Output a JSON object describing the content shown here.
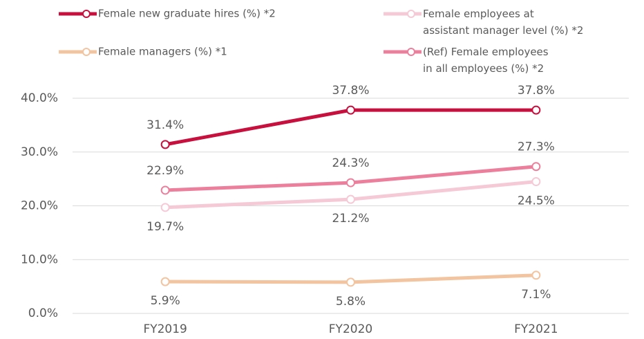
{
  "chart_data": {
    "type": "line",
    "categories": [
      "FY2019",
      "FY2020",
      "FY2021"
    ],
    "series": [
      {
        "name": "Female new graduate hires (%) *2",
        "color": "#c8103e",
        "values": [
          31.4,
          37.8,
          37.8
        ],
        "value_labels": [
          "31.4%",
          "37.8%",
          "37.8%"
        ]
      },
      {
        "name": "Female employees at assistant manager level (%) *2",
        "color": "#f5c9d6",
        "values": [
          19.7,
          21.2,
          24.5
        ],
        "value_labels": [
          "19.7%",
          "21.2%",
          "24.5%"
        ]
      },
      {
        "name": "Female managers (%) *1",
        "color": "#f2c4a0",
        "values": [
          5.9,
          5.8,
          7.1
        ],
        "value_labels": [
          "5.9%",
          "5.8%",
          "7.1%"
        ]
      },
      {
        "name": "(Ref) Female employees in all employees (%) *2",
        "color": "#ec7f9c",
        "values": [
          22.9,
          24.3,
          27.3
        ],
        "value_labels": [
          "22.9%",
          "24.3%",
          "27.3%"
        ]
      }
    ],
    "ylim": [
      0,
      40
    ],
    "yticks": [
      {
        "value": 0,
        "label": "0.0%"
      },
      {
        "value": 10,
        "label": "10.0%"
      },
      {
        "value": 20,
        "label": "20.0%"
      },
      {
        "value": 30,
        "label": "30.0%"
      },
      {
        "value": 40,
        "label": "40.0%"
      }
    ],
    "grid": true
  }
}
